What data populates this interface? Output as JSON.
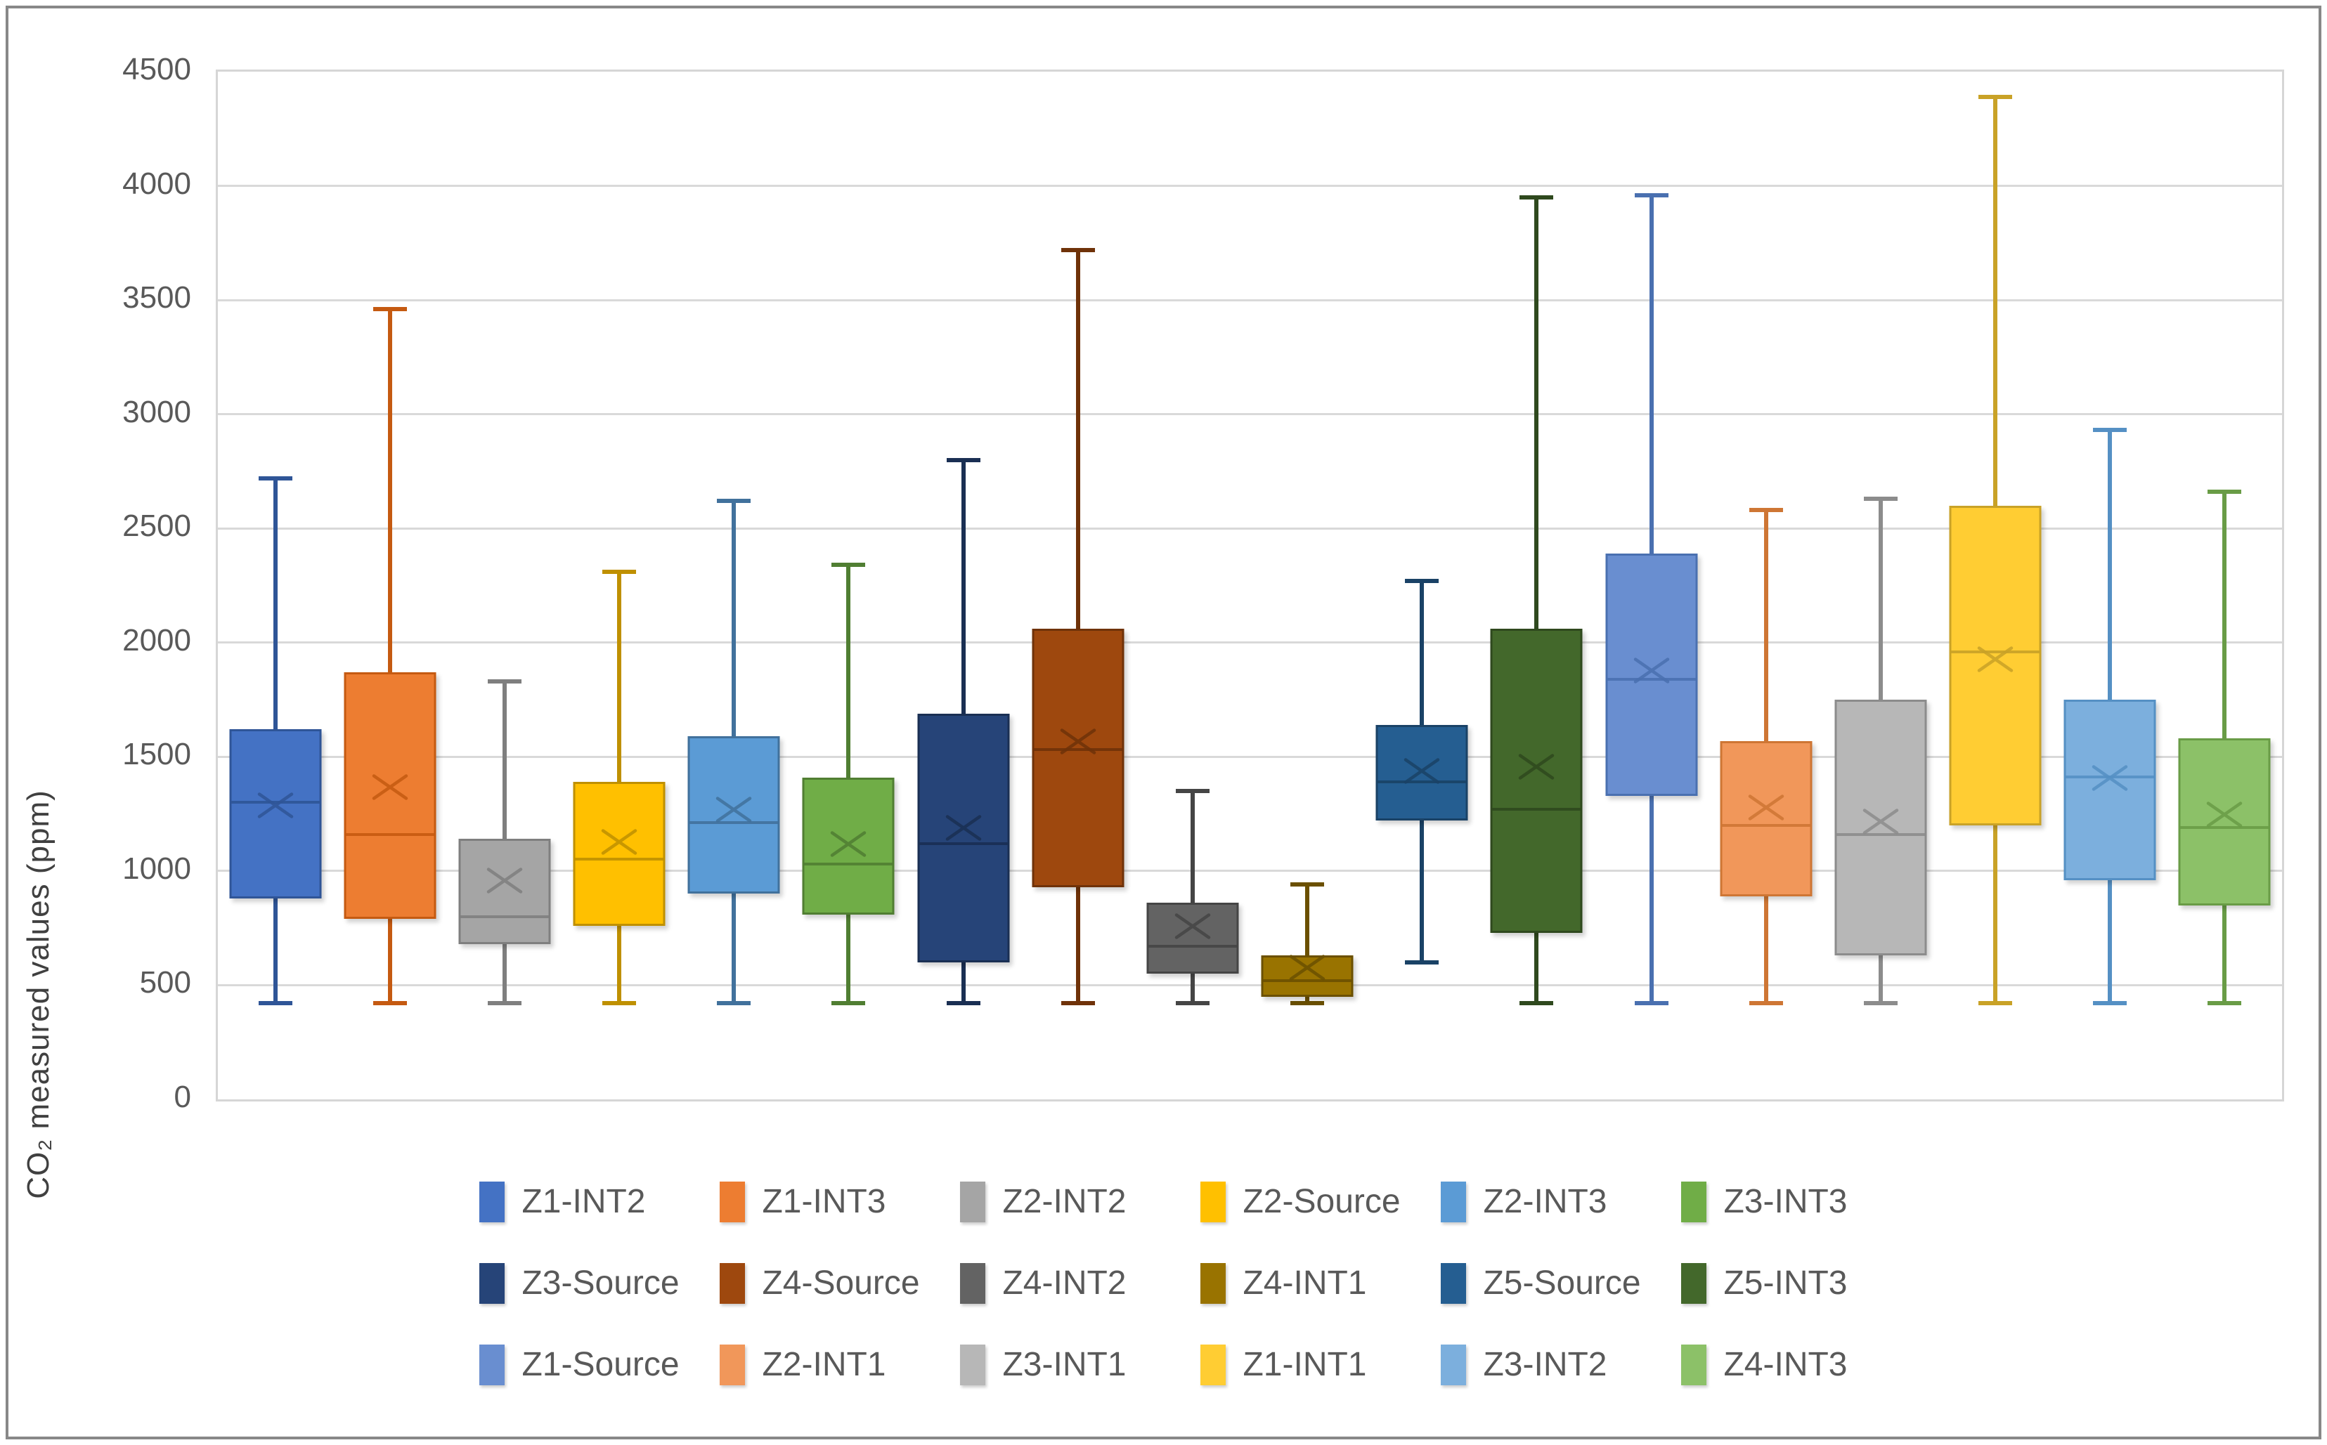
{
  "figure": {
    "background": "#FFFFFF",
    "outer_border_color": "#888888",
    "plot_border_color": "#D6D6D6",
    "gridline_color": "#D9D9D9",
    "text_color": "#595959"
  },
  "y_axis": {
    "title": "CO₂ measured values (ppm)",
    "min": 0,
    "max": 4500,
    "step": 500,
    "tick_values": [
      0,
      500,
      1000,
      1500,
      2000,
      2500,
      3000,
      3500,
      4000,
      4500
    ],
    "tick_labels": [
      "0",
      "500",
      "1000",
      "1500",
      "2000",
      "2500",
      "3000",
      "3500",
      "4000",
      "4500"
    ]
  },
  "x_axis": {
    "tick_labels": []
  },
  "chart_data": {
    "type": "boxplot",
    "title": "",
    "xlabel": "",
    "ylabel": "CO₂ measured values (ppm)",
    "ylim": [
      0,
      4500
    ],
    "grid": true,
    "legend_position": "bottom",
    "series": [
      {
        "name": "Z1-INT2",
        "color": "#4472C4",
        "border": "#2F5597",
        "whisker_low": 420,
        "q1": 880,
        "median": 1310,
        "mean": 1280,
        "q3": 1620,
        "whisker_high": 2720
      },
      {
        "name": "Z1-INT3",
        "color": "#ED7D31",
        "border": "#C55A11",
        "whisker_low": 420,
        "q1": 790,
        "median": 1170,
        "mean": 1360,
        "q3": 1870,
        "whisker_high": 3460
      },
      {
        "name": "Z2-INT2",
        "color": "#A5A5A5",
        "border": "#7F7F7F",
        "whisker_low": 420,
        "q1": 680,
        "median": 810,
        "mean": 950,
        "q3": 1140,
        "whisker_high": 1830
      },
      {
        "name": "Z2-Source",
        "color": "#FFC000",
        "border": "#BF9000",
        "whisker_low": 420,
        "q1": 760,
        "median": 1060,
        "mean": 1120,
        "q3": 1390,
        "whisker_high": 2310
      },
      {
        "name": "Z2-INT3",
        "color": "#5B9BD5",
        "border": "#41719C",
        "whisker_low": 420,
        "q1": 900,
        "median": 1220,
        "mean": 1260,
        "q3": 1590,
        "whisker_high": 2620
      },
      {
        "name": "Z3-INT3",
        "color": "#70AD47",
        "border": "#507E32",
        "whisker_low": 420,
        "q1": 810,
        "median": 1040,
        "mean": 1110,
        "q3": 1410,
        "whisker_high": 2340
      },
      {
        "name": "Z3-Source",
        "color": "#264478",
        "border": "#1A2F53",
        "whisker_low": 420,
        "q1": 600,
        "median": 1130,
        "mean": 1180,
        "q3": 1690,
        "whisker_high": 2800
      },
      {
        "name": "Z4-Source",
        "color": "#9E480E",
        "border": "#6F3209",
        "whisker_low": 420,
        "q1": 930,
        "median": 1540,
        "mean": 1560,
        "q3": 2060,
        "whisker_high": 3720
      },
      {
        "name": "Z4-INT2",
        "color": "#636363",
        "border": "#454545",
        "whisker_low": 420,
        "q1": 550,
        "median": 680,
        "mean": 750,
        "q3": 860,
        "whisker_high": 1350
      },
      {
        "name": "Z4-INT1",
        "color": "#997300",
        "border": "#6B5000",
        "whisker_low": 420,
        "q1": 450,
        "median": 530,
        "mean": 570,
        "q3": 630,
        "whisker_high": 940
      },
      {
        "name": "Z5-Source",
        "color": "#255E91",
        "border": "#1A4266",
        "whisker_low": 600,
        "q1": 1220,
        "median": 1400,
        "mean": 1430,
        "q3": 1640,
        "whisker_high": 2270
      },
      {
        "name": "Z5-INT3",
        "color": "#43682B",
        "border": "#2F491E",
        "whisker_low": 420,
        "q1": 730,
        "median": 1280,
        "mean": 1450,
        "q3": 2060,
        "whisker_high": 3950
      },
      {
        "name": "Z1-Source",
        "color": "#698ED0",
        "border": "#4A70B0",
        "whisker_low": 420,
        "q1": 1330,
        "median": 1850,
        "mean": 1870,
        "q3": 2390,
        "whisker_high": 3960
      },
      {
        "name": "Z2-INT1",
        "color": "#F1975A",
        "border": "#CE7634",
        "whisker_low": 420,
        "q1": 890,
        "median": 1210,
        "mean": 1270,
        "q3": 1570,
        "whisker_high": 2580
      },
      {
        "name": "Z3-INT1",
        "color": "#B7B7B7",
        "border": "#8C8C8C",
        "whisker_low": 420,
        "q1": 630,
        "median": 1170,
        "mean": 1210,
        "q3": 1750,
        "whisker_high": 2630
      },
      {
        "name": "Z1-INT1",
        "color": "#FFCD33",
        "border": "#C9A227",
        "whisker_low": 420,
        "q1": 1200,
        "median": 1970,
        "mean": 1920,
        "q3": 2600,
        "whisker_high": 4390
      },
      {
        "name": "Z3-INT2",
        "color": "#7CAFDD",
        "border": "#5590C4",
        "whisker_low": 420,
        "q1": 960,
        "median": 1420,
        "mean": 1400,
        "q3": 1750,
        "whisker_high": 2930
      },
      {
        "name": "Z4-INT3",
        "color": "#8CC168",
        "border": "#699C46",
        "whisker_low": 420,
        "q1": 850,
        "median": 1200,
        "mean": 1240,
        "q3": 1580,
        "whisker_high": 2660
      }
    ],
    "legend_rows": [
      [
        0,
        1,
        2,
        3,
        4,
        5
      ],
      [
        6,
        7,
        8,
        9,
        10,
        11
      ],
      [
        12,
        13,
        14,
        15,
        16,
        17
      ]
    ]
  }
}
